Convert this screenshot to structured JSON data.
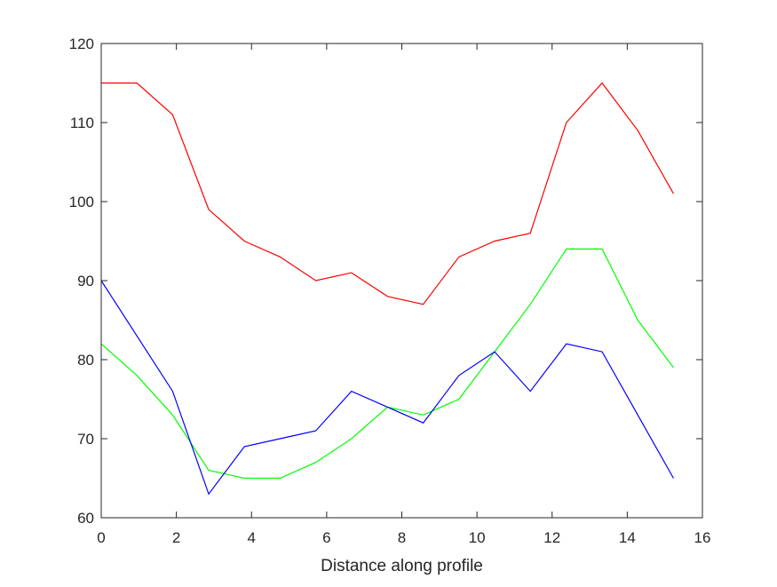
{
  "chart_data": {
    "type": "line",
    "title": "",
    "xlabel": "Distance along profile",
    "ylabel": "",
    "xlim": [
      0,
      16
    ],
    "ylim": [
      60,
      120
    ],
    "xticks": [
      "0",
      "2",
      "4",
      "6",
      "8",
      "10",
      "12",
      "14",
      "16"
    ],
    "yticks": [
      "60",
      "70",
      "80",
      "90",
      "100",
      "110",
      "120"
    ],
    "grid": false,
    "legend": null,
    "x": [
      0,
      0.95,
      1.9,
      2.86,
      3.81,
      4.76,
      5.71,
      6.66,
      7.62,
      8.57,
      9.52,
      10.47,
      11.42,
      12.38,
      13.33,
      14.28,
      15.23
    ],
    "series": [
      {
        "color": "#ff0000",
        "values": [
          115,
          115,
          111,
          99,
          95,
          93,
          90,
          91,
          88,
          87,
          93,
          95,
          96,
          110,
          115,
          109,
          101
        ]
      },
      {
        "color": "#00ff00",
        "values": [
          82,
          78,
          73,
          66,
          65,
          65,
          67,
          70,
          74,
          73,
          75,
          81,
          87,
          94,
          94,
          85,
          79
        ]
      },
      {
        "color": "#0000ff",
        "values": [
          90,
          83,
          76,
          63,
          69,
          70,
          71,
          76,
          74,
          72,
          78,
          81,
          76,
          82,
          81,
          73,
          65
        ]
      }
    ]
  }
}
